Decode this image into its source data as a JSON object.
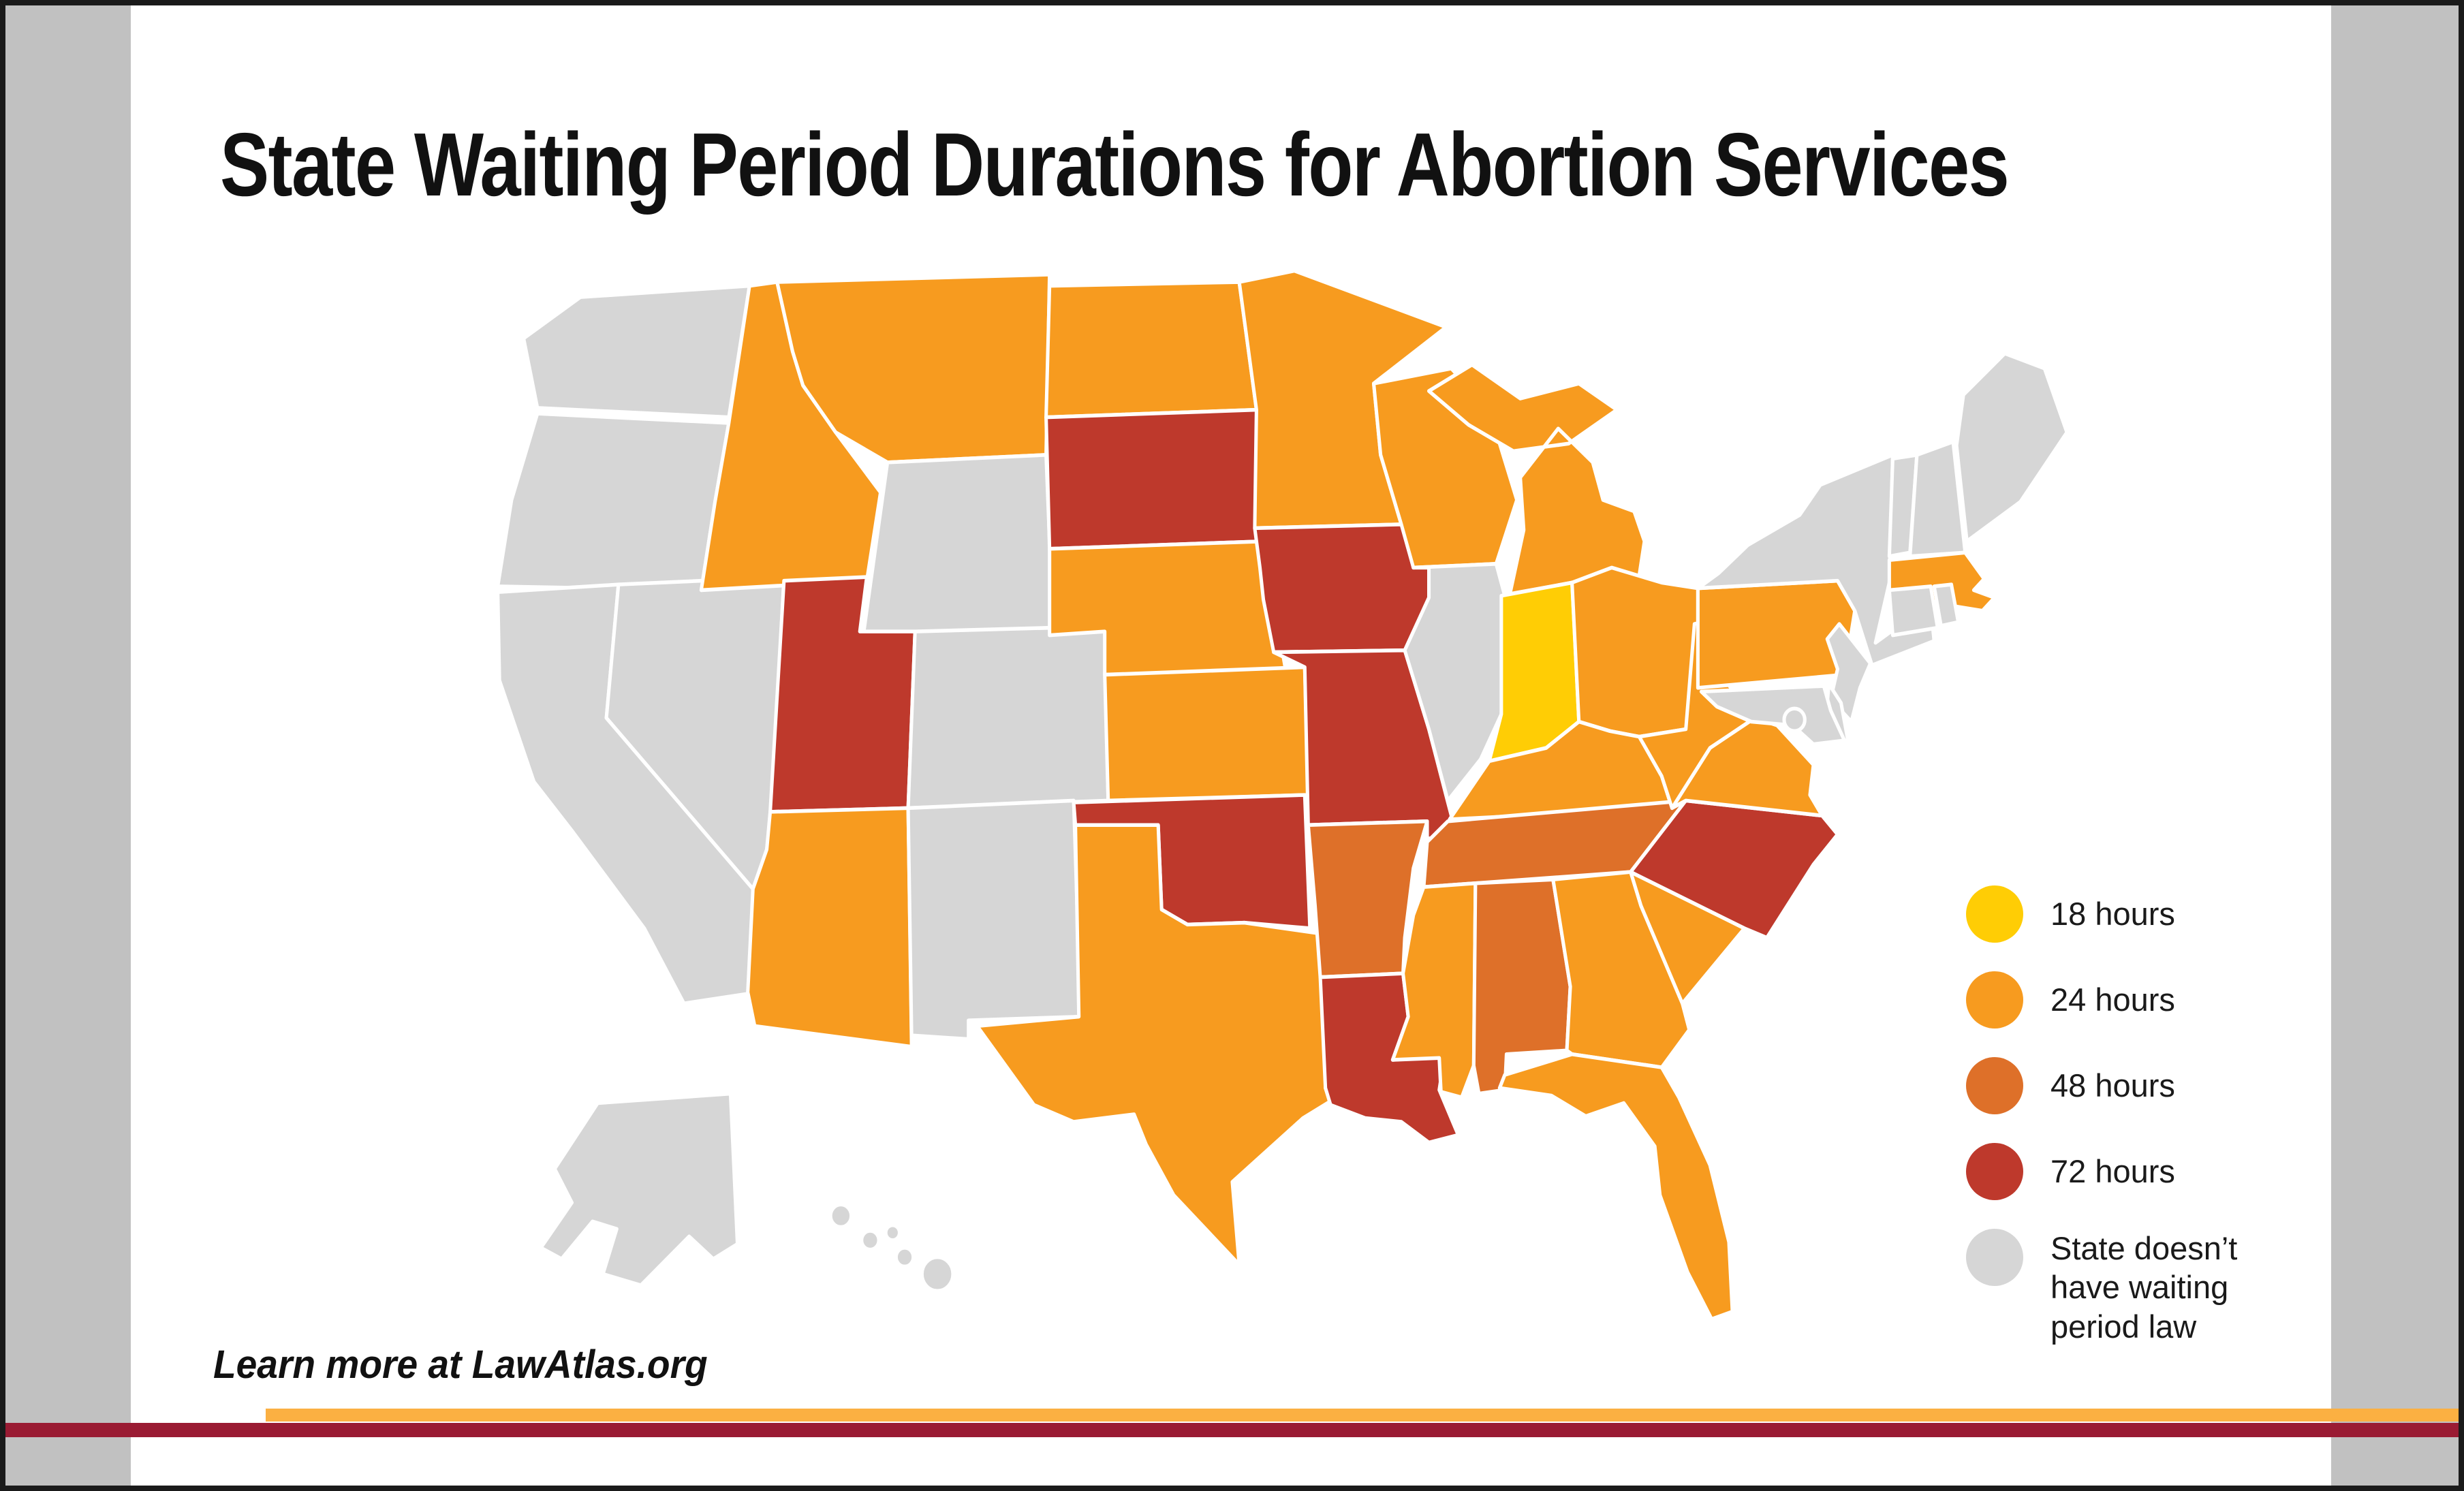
{
  "title": "State Waiting Period Durations for Abortion Services",
  "source_note": "Learn more at LawAtlas.org",
  "legend": {
    "items": [
      {
        "label": "18 hours",
        "color": "#FFCD05"
      },
      {
        "label": "24 hours",
        "color": "#F79B1F"
      },
      {
        "label": "48 hours",
        "color": "#DE7029"
      },
      {
        "label": "72 hours",
        "color": "#BE392C"
      },
      {
        "label": "State doesn’t have waiting period law",
        "color": "#D6D6D6"
      }
    ]
  },
  "colors": {
    "page_background": "#FFFFFF",
    "page_border": "#1A1A1A",
    "margin_strip": "#C1C1C1",
    "state_border": "#FFFFFF",
    "bottom_bar_orange": "#FBB042",
    "bottom_bar_maroon": "#9A1B33"
  },
  "chart_data": {
    "type": "choropleth_map",
    "region": "United States (50 states + DC)",
    "title": "State Waiting Period Durations for Abortion Services",
    "legend_position": "right",
    "categories": [
      {
        "label": "18 hours",
        "color": "#FFCD05"
      },
      {
        "label": "24 hours",
        "color": "#F79B1F"
      },
      {
        "label": "48 hours",
        "color": "#DE7029"
      },
      {
        "label": "72 hours",
        "color": "#BE392C"
      },
      {
        "label": "No waiting period law",
        "color": "#D6D6D6"
      }
    ],
    "states": {
      "Alabama": "48 hours",
      "Alaska": "No waiting period law",
      "Arizona": "24 hours",
      "Arkansas": "48 hours",
      "California": "No waiting period law",
      "Colorado": "No waiting period law",
      "Connecticut": "No waiting period law",
      "Delaware": "No waiting period law",
      "District of Columbia": "No waiting period law",
      "Florida": "24 hours",
      "Georgia": "24 hours",
      "Hawaii": "No waiting period law",
      "Idaho": "24 hours",
      "Illinois": "No waiting period law",
      "Indiana": "18 hours",
      "Iowa": "72 hours",
      "Kansas": "24 hours",
      "Kentucky": "24 hours",
      "Louisiana": "72 hours",
      "Maine": "No waiting period law",
      "Maryland": "No waiting period law",
      "Massachusetts": "24 hours",
      "Michigan": "24 hours",
      "Minnesota": "24 hours",
      "Mississippi": "24 hours",
      "Missouri": "72 hours",
      "Montana": "24 hours",
      "Nebraska": "24 hours",
      "Nevada": "No waiting period law",
      "New Hampshire": "No waiting period law",
      "New Jersey": "No waiting period law",
      "New Mexico": "No waiting period law",
      "New York": "No waiting period law",
      "North Carolina": "72 hours",
      "North Dakota": "24 hours",
      "Ohio": "24 hours",
      "Oklahoma": "72 hours",
      "Oregon": "No waiting period law",
      "Pennsylvania": "24 hours",
      "Rhode Island": "No waiting period law",
      "South Carolina": "24 hours",
      "South Dakota": "72 hours",
      "Tennessee": "48 hours",
      "Texas": "24 hours",
      "Utah": "72 hours",
      "Vermont": "No waiting period law",
      "Virginia": "24 hours",
      "Washington": "No waiting period law",
      "West Virginia": "24 hours",
      "Wisconsin": "24 hours",
      "Wyoming": "No waiting period law"
    }
  }
}
